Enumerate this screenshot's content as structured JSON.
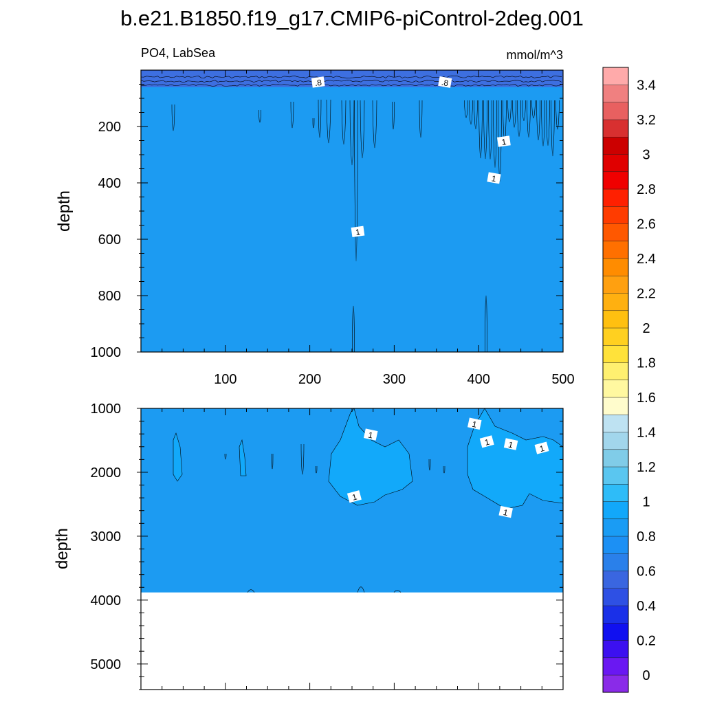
{
  "title": "b.e21.B1850.f19_g17.CMIP6-piControl-2deg.001",
  "colors": {
    "shallow_band": "#3d6fe0",
    "field": "#1c9bf2",
    "highlight": "#12a9fa",
    "background": "#ffffff"
  },
  "chart_data": [
    {
      "type": "heatmap",
      "panel": "upper",
      "left_label": "PO4, LabSea",
      "right_label": "mmol/m^3",
      "xlabel": "",
      "ylabel": "depth",
      "xlim": [
        0,
        500
      ],
      "ylim": [
        0,
        1000
      ],
      "y_reversed": true,
      "x_ticks": [
        100,
        200,
        300,
        400,
        500
      ],
      "y_ticks": [
        200,
        400,
        600,
        800,
        1000
      ],
      "contour_labels": [
        {
          "x": 210,
          "y": 45,
          "label": ".8"
        },
        {
          "x": 360,
          "y": 45,
          "label": ".8"
        },
        {
          "x": 430,
          "y": 255,
          "label": "1"
        },
        {
          "x": 418,
          "y": 385,
          "label": "1"
        },
        {
          "x": 257,
          "y": 575,
          "label": "1"
        }
      ],
      "shallow_layer": {
        "depth_max": 60,
        "value": 0.8
      }
    },
    {
      "type": "heatmap",
      "panel": "lower",
      "xlabel": "",
      "ylabel": "depth",
      "xlim": [
        0,
        500
      ],
      "ylim": [
        1000,
        5400
      ],
      "y_reversed": true,
      "x_ticks": [
        100,
        200,
        300,
        400,
        500
      ],
      "y_ticks": [
        1000,
        2000,
        3000,
        4000,
        5000
      ],
      "ocean_floor_depth": 3880,
      "contour_labels": [
        {
          "x": 272,
          "y": 1420,
          "label": "1"
        },
        {
          "x": 253,
          "y": 2390,
          "label": "1"
        },
        {
          "x": 395,
          "y": 1250,
          "label": "1"
        },
        {
          "x": 410,
          "y": 1530,
          "label": "1"
        },
        {
          "x": 438,
          "y": 1570,
          "label": "1"
        },
        {
          "x": 475,
          "y": 1630,
          "label": "1"
        },
        {
          "x": 432,
          "y": 2630,
          "label": "1"
        }
      ]
    },
    {
      "type": "colorbar",
      "labels": [
        "0",
        "0.2",
        "0.4",
        "0.6",
        "0.8",
        "1",
        "1.2",
        "1.4",
        "1.6",
        "1.8",
        "2",
        "2.2",
        "2.4",
        "2.6",
        "2.8",
        "3",
        "3.2",
        "3.4"
      ],
      "colors": [
        "#8a2be8",
        "#6a18f2",
        "#3c10f0",
        "#1010f0",
        "#1a30e8",
        "#2e50e4",
        "#3a66e0",
        "#2a80ea",
        "#1c90f4",
        "#1a9cf4",
        "#12a8fa",
        "#2ebcf8",
        "#5ac6f0",
        "#80cce8",
        "#a2d6ec",
        "#bee2f2",
        "#fffccc",
        "#fff8a0",
        "#fff070",
        "#ffe23a",
        "#ffd020",
        "#ffc010",
        "#ffb010",
        "#ffa010",
        "#ff8c00",
        "#ff7000",
        "#ff5800",
        "#ff3c00",
        "#ff2000",
        "#f00000",
        "#e00000",
        "#cc0000",
        "#d83030",
        "#e86060",
        "#f08080",
        "#ffaaaa"
      ]
    }
  ]
}
